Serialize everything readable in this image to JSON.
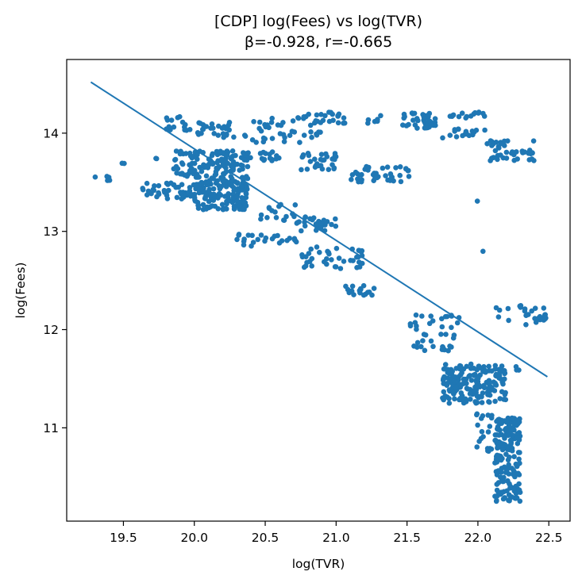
{
  "chart_data": {
    "type": "scatter",
    "title": "[CDP] log(Fees) vs log(TVR)",
    "subtitle": "β=-0.928, r=-0.665",
    "xlabel": "log(TVR)",
    "ylabel": "log(Fees)",
    "xlim": [
      19.1,
      22.65
    ],
    "ylim": [
      10.05,
      14.75
    ],
    "xticks": [
      19.5,
      20.0,
      20.5,
      21.0,
      21.5,
      22.0,
      22.5
    ],
    "xtick_labels": [
      "19.5",
      "20.0",
      "20.5",
      "21.0",
      "21.5",
      "22.0",
      "22.5"
    ],
    "yticks": [
      11,
      12,
      13,
      14
    ],
    "ytick_labels": [
      "11",
      "12",
      "13",
      "14"
    ],
    "grid": false,
    "point_color": "#1f77b4",
    "fit_line": {
      "x": [
        19.27,
        22.49
      ],
      "y": [
        14.52,
        11.52
      ]
    },
    "clusters": [
      {
        "x": [
          19.27,
          19.45
        ],
        "y": [
          13.5,
          13.56
        ],
        "n": 6
      },
      {
        "x": [
          19.45,
          19.52
        ],
        "y": [
          13.68,
          13.74
        ],
        "n": 2
      },
      {
        "x": [
          19.63,
          20.05
        ],
        "y": [
          13.33,
          13.5
        ],
        "n": 45
      },
      {
        "x": [
          19.72,
          19.75
        ],
        "y": [
          13.7,
          13.75
        ],
        "n": 2
      },
      {
        "x": [
          19.85,
          20.38
        ],
        "y": [
          13.55,
          13.82
        ],
        "n": 120
      },
      {
        "x": [
          19.8,
          20.0
        ],
        "y": [
          14.02,
          14.18
        ],
        "n": 16
      },
      {
        "x": [
          20.0,
          20.38
        ],
        "y": [
          13.22,
          13.55
        ],
        "n": 160
      },
      {
        "x": [
          20.02,
          20.4
        ],
        "y": [
          13.95,
          14.12
        ],
        "n": 28
      },
      {
        "x": [
          20.35,
          20.62
        ],
        "y": [
          13.72,
          13.82
        ],
        "n": 22
      },
      {
        "x": [
          20.4,
          20.9
        ],
        "y": [
          13.9,
          14.18
        ],
        "n": 40
      },
      {
        "x": [
          20.75,
          21.0
        ],
        "y": [
          13.62,
          13.8
        ],
        "n": 30
      },
      {
        "x": [
          20.72,
          21.02
        ],
        "y": [
          13.0,
          13.15
        ],
        "n": 30
      },
      {
        "x": [
          20.3,
          20.75
        ],
        "y": [
          12.85,
          12.98
        ],
        "n": 25
      },
      {
        "x": [
          20.45,
          20.72
        ],
        "y": [
          13.1,
          13.28
        ],
        "n": 16
      },
      {
        "x": [
          20.75,
          21.2
        ],
        "y": [
          12.62,
          12.85
        ],
        "n": 40
      },
      {
        "x": [
          21.05,
          21.28
        ],
        "y": [
          12.35,
          12.45
        ],
        "n": 18
      },
      {
        "x": [
          20.72,
          21.0
        ],
        "y": [
          14.1,
          14.22
        ],
        "n": 15
      },
      {
        "x": [
          21.0,
          21.35
        ],
        "y": [
          14.1,
          14.2
        ],
        "n": 14
      },
      {
        "x": [
          21.1,
          21.52
        ],
        "y": [
          13.5,
          13.66
        ],
        "n": 40
      },
      {
        "x": [
          21.45,
          21.7
        ],
        "y": [
          14.05,
          14.22
        ],
        "n": 40
      },
      {
        "x": [
          21.8,
          22.05
        ],
        "y": [
          14.15,
          14.22
        ],
        "n": 15
      },
      {
        "x": [
          21.75,
          22.05
        ],
        "y": [
          13.95,
          14.05
        ],
        "n": 18
      },
      {
        "x": [
          22.05,
          22.4
        ],
        "y": [
          13.72,
          13.95
        ],
        "n": 45
      },
      {
        "x": [
          21.5,
          21.88
        ],
        "y": [
          11.78,
          12.15
        ],
        "n": 40
      },
      {
        "x": [
          21.75,
          22.2
        ],
        "y": [
          11.25,
          11.65
        ],
        "n": 180
      },
      {
        "x": [
          21.98,
          22.1
        ],
        "y": [
          10.75,
          11.2
        ],
        "n": 20
      },
      {
        "x": [
          22.12,
          22.3
        ],
        "y": [
          10.25,
          11.1
        ],
        "n": 180
      },
      {
        "x": [
          22.12,
          22.48
        ],
        "y": [
          12.05,
          12.25
        ],
        "n": 28
      },
      {
        "x": [
          22.25,
          22.3
        ],
        "y": [
          11.58,
          11.65
        ],
        "n": 3
      },
      {
        "x": [
          21.96,
          22.0
        ],
        "y": [
          13.3,
          13.35
        ],
        "n": 1
      },
      {
        "x": [
          22.0,
          22.04
        ],
        "y": [
          12.79,
          12.83
        ],
        "n": 1
      }
    ]
  }
}
